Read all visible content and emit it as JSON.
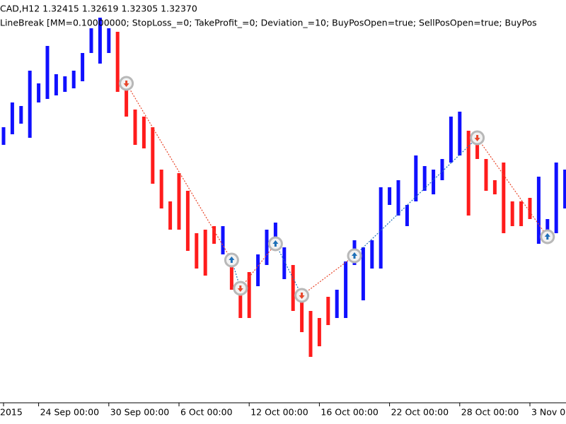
{
  "chart_data": {
    "type": "ohlc",
    "title": "CAD,H12  1.32415 1.32619 1.32305 1.32370",
    "subtitle": "LineBreak [MM=0.10000000; StopLoss_=0; TakeProfit_=0; Deviation_=10; BuyPosOpen=true; SellPosOpen=true; BuyPos",
    "categories": [
      "2015",
      null,
      null,
      null,
      "24 Sep 00:00",
      null,
      null,
      null,
      null,
      null,
      null,
      null,
      "30 Sep 00:00",
      null,
      null,
      null,
      null,
      null,
      null,
      null,
      "6 Oct 00:00",
      null,
      null,
      null,
      null,
      null,
      null,
      null,
      "12 Oct 00:00",
      null,
      null,
      null,
      null,
      null,
      null,
      null,
      "16 Oct 00:00",
      null,
      null,
      null,
      null,
      null,
      null,
      null,
      "22 Oct 00:00",
      null,
      null,
      null,
      null,
      null,
      null,
      null,
      "28 Oct 00:00",
      null,
      null,
      null,
      null,
      null,
      null,
      null,
      "3 Nov 00:00",
      null,
      null,
      null,
      null
    ],
    "open": [
      1.3295,
      1.331,
      1.3325,
      1.3305,
      1.3355,
      1.336,
      1.3365,
      1.337,
      1.3375,
      1.3385,
      1.3425,
      1.341,
      1.3425,
      1.3455,
      1.338,
      1.3345,
      1.3335,
      1.332,
      1.326,
      1.3215,
      1.3255,
      1.323,
      1.317,
      1.3175,
      1.318,
      1.314,
      1.3135,
      1.3095,
      1.3115,
      1.3095,
      1.3125,
      1.3145,
      1.3105,
      1.3125,
      1.308,
      1.306,
      1.305,
      1.308,
      1.305,
      1.305,
      1.3125,
      1.3075,
      1.312,
      1.312,
      1.321,
      1.3195,
      1.318,
      1.3215,
      1.323,
      1.3225,
      1.3245,
      1.327,
      1.328,
      1.3315,
      1.331,
      1.3275,
      1.3245,
      1.327,
      1.3215,
      1.3215,
      1.322,
      1.3155,
      1.316,
      1.317,
      1.3205
    ],
    "close": [
      1.332,
      1.3355,
      1.335,
      1.34,
      1.3382,
      1.3435,
      1.3395,
      1.3392,
      1.34,
      1.3425,
      1.346,
      1.3475,
      1.346,
      1.337,
      1.3335,
      1.3295,
      1.329,
      1.324,
      1.3205,
      1.3175,
      1.3175,
      1.3145,
      1.312,
      1.311,
      1.3155,
      1.318,
      1.309,
      1.305,
      1.305,
      1.314,
      1.3175,
      1.3185,
      1.315,
      1.306,
      1.303,
      1.2995,
      1.301,
      1.304,
      1.309,
      1.313,
      1.316,
      1.315,
      1.316,
      1.3235,
      1.3235,
      1.3245,
      1.321,
      1.328,
      1.3265,
      1.326,
      1.3275,
      1.3335,
      1.3342,
      1.3195,
      1.3275,
      1.323,
      1.3225,
      1.317,
      1.318,
      1.318,
      1.319,
      1.325,
      1.319,
      1.327,
      1.326
    ],
    "up_color": "#1010ff",
    "down_color": "#ff1c1c",
    "ylim": [
      1.294,
      1.35
    ],
    "signals": {
      "index": [
        14,
        26,
        27,
        31,
        34,
        40,
        54,
        62
      ],
      "price": [
        1.3382,
        1.3132,
        1.3092,
        1.3155,
        1.3082,
        1.3138,
        1.3305,
        1.3165
      ],
      "direction": [
        "sell",
        "buy",
        "sell",
        "buy",
        "sell",
        "buy",
        "sell",
        "buy"
      ]
    },
    "buy_color": "#1c6fb8",
    "sell_color": "#e8462a"
  }
}
